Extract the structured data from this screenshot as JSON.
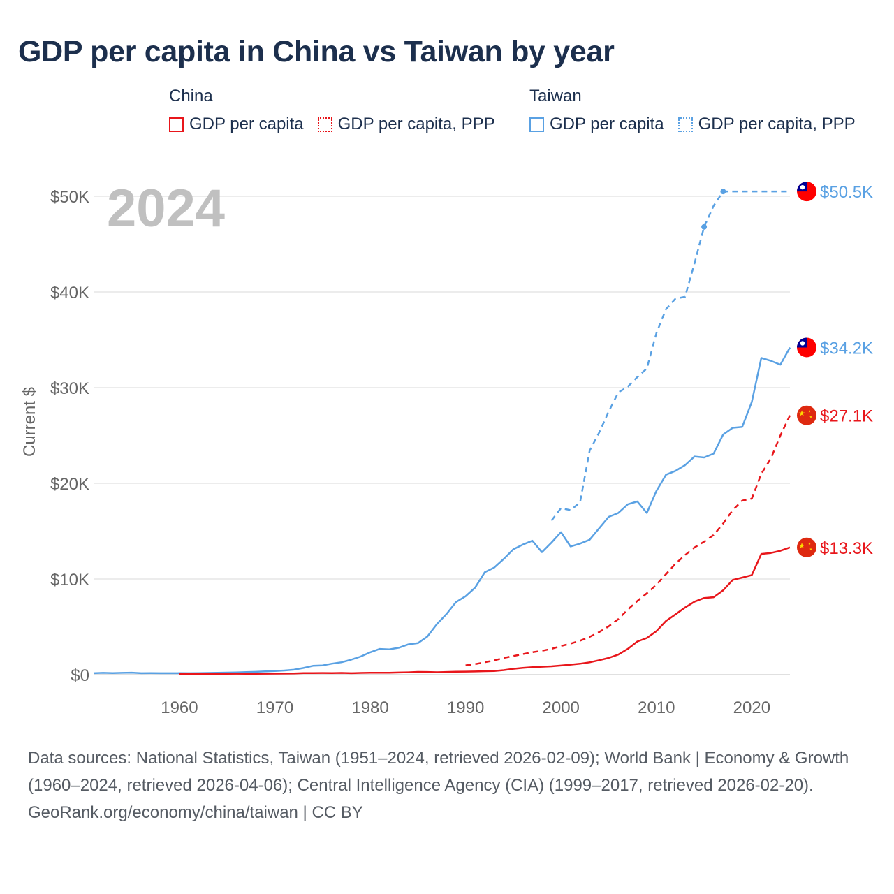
{
  "title": "GDP per capita in China vs Taiwan by year",
  "legend": {
    "china": {
      "title": "China",
      "items": [
        {
          "label": "GDP per capita",
          "color": "#e8161b",
          "style": "solid"
        },
        {
          "label": "GDP per capita, PPP",
          "color": "#e8161b",
          "style": "dotted"
        }
      ]
    },
    "taiwan": {
      "title": "Taiwan",
      "items": [
        {
          "label": "GDP per capita",
          "color": "#5aa1e3",
          "style": "solid"
        },
        {
          "label": "GDP per capita, PPP",
          "color": "#5aa1e3",
          "style": "dotted"
        }
      ]
    }
  },
  "year_overlay": "2024",
  "chart_data": {
    "type": "line",
    "title": "GDP per capita in China vs Taiwan by year",
    "xlabel": "",
    "ylabel": "Current $",
    "xlim": [
      1951,
      2024
    ],
    "ylim": [
      0,
      50500
    ],
    "x_ticks": [
      {
        "value": 1960,
        "label": "1960"
      },
      {
        "value": 1970,
        "label": "1970"
      },
      {
        "value": 1980,
        "label": "1980"
      },
      {
        "value": 1990,
        "label": "1990"
      },
      {
        "value": 2000,
        "label": "2000"
      },
      {
        "value": 2010,
        "label": "2010"
      },
      {
        "value": 2020,
        "label": "2020"
      }
    ],
    "y_ticks": [
      {
        "value": 0,
        "label": "$0"
      },
      {
        "value": 10000,
        "label": "$10K"
      },
      {
        "value": 20000,
        "label": "$20K"
      },
      {
        "value": 30000,
        "label": "$30K"
      },
      {
        "value": 40000,
        "label": "$40K"
      },
      {
        "value": 50000,
        "label": "$50K"
      }
    ],
    "grid": true,
    "series": [
      {
        "name": "Taiwan GDP per capita",
        "country": "taiwan",
        "color": "#5aa1e3",
        "dashed": false,
        "end_label": "$34.2K",
        "x": [
          1951,
          1952,
          1953,
          1954,
          1955,
          1956,
          1957,
          1958,
          1959,
          1960,
          1961,
          1962,
          1963,
          1964,
          1965,
          1966,
          1967,
          1968,
          1969,
          1970,
          1971,
          1972,
          1973,
          1974,
          1975,
          1976,
          1977,
          1978,
          1979,
          1980,
          1981,
          1982,
          1983,
          1984,
          1985,
          1986,
          1987,
          1988,
          1989,
          1990,
          1991,
          1992,
          1993,
          1994,
          1995,
          1996,
          1997,
          1998,
          1999,
          2000,
          2001,
          2002,
          2003,
          2004,
          2005,
          2006,
          2007,
          2008,
          2009,
          2010,
          2011,
          2012,
          2013,
          2014,
          2015,
          2016,
          2017,
          2018,
          2019,
          2020,
          2021,
          2022,
          2023,
          2024
        ],
        "y": [
          150,
          190,
          170,
          190,
          210,
          150,
          160,
          150,
          150,
          160,
          150,
          160,
          180,
          200,
          220,
          240,
          270,
          300,
          340,
          390,
          440,
          520,
          700,
          930,
          970,
          1150,
          1300,
          1570,
          1900,
          2340,
          2690,
          2650,
          2820,
          3170,
          3300,
          3990,
          5300,
          6340,
          7600,
          8200,
          9100,
          10700,
          11200,
          12100,
          13100,
          13600,
          14000,
          12800,
          13800,
          14900,
          13400,
          13700,
          14100,
          15300,
          16500,
          16900,
          17800,
          18100,
          16900,
          19200,
          20900,
          21300,
          21900,
          22800,
          22700,
          23100,
          25100,
          25800,
          25900,
          28500,
          33100,
          32800,
          32400,
          34200
        ]
      },
      {
        "name": "Taiwan GDP per capita, PPP",
        "country": "taiwan",
        "color": "#5aa1e3",
        "dashed": true,
        "end_label": "$50.5K",
        "x": [
          1999,
          2000,
          2001,
          2002,
          2003,
          2004,
          2005,
          2006,
          2007,
          2008,
          2009,
          2010,
          2011,
          2012,
          2013,
          2014,
          2015,
          2016,
          2017,
          2018,
          2019,
          2020,
          2021,
          2022,
          2023,
          2024
        ],
        "y": [
          16100,
          17400,
          17200,
          18000,
          23400,
          25300,
          27500,
          29500,
          30100,
          31100,
          32000,
          35700,
          38200,
          39300,
          39500,
          43000,
          46800,
          49000,
          50500,
          50500,
          50500,
          50500,
          50500,
          50500,
          50500,
          50500
        ],
        "markers_x": [
          2015,
          2017
        ]
      },
      {
        "name": "China GDP per capita",
        "country": "china",
        "color": "#e8161b",
        "dashed": false,
        "end_label": "$13.3K",
        "x": [
          1960,
          1961,
          1962,
          1963,
          1964,
          1965,
          1966,
          1967,
          1968,
          1969,
          1970,
          1971,
          1972,
          1973,
          1974,
          1975,
          1976,
          1977,
          1978,
          1979,
          1980,
          1981,
          1982,
          1983,
          1984,
          1985,
          1986,
          1987,
          1988,
          1989,
          1990,
          1991,
          1992,
          1993,
          1994,
          1995,
          1996,
          1997,
          1998,
          1999,
          2000,
          2001,
          2002,
          2003,
          2004,
          2005,
          2006,
          2007,
          2008,
          2009,
          2010,
          2011,
          2012,
          2013,
          2014,
          2015,
          2016,
          2017,
          2018,
          2019,
          2020,
          2021,
          2022,
          2023,
          2024
        ],
        "y": [
          90,
          76,
          70,
          74,
          85,
          98,
          104,
          96,
          91,
          99,
          113,
          119,
          132,
          157,
          160,
          178,
          165,
          185,
          156,
          183,
          195,
          197,
          203,
          225,
          250,
          294,
          282,
          252,
          283,
          310,
          318,
          333,
          366,
          377,
          473,
          610,
          709,
          782,
          829,
          873,
          959,
          1053,
          1149,
          1289,
          1509,
          1753,
          2099,
          2694,
          3468,
          3832,
          4550,
          5614,
          6301,
          7020,
          7636,
          8016,
          8094,
          8817,
          9905,
          10144,
          10409,
          12618,
          12720,
          12951,
          13300
        ]
      },
      {
        "name": "China GDP per capita, PPP",
        "country": "china",
        "color": "#e8161b",
        "dashed": true,
        "end_label": "$27.1K",
        "x": [
          1990,
          1991,
          1992,
          1993,
          1994,
          1995,
          1996,
          1997,
          1998,
          1999,
          2000,
          2001,
          2002,
          2003,
          2004,
          2005,
          2006,
          2007,
          2008,
          2009,
          2010,
          2011,
          2012,
          2013,
          2014,
          2015,
          2016,
          2017,
          2018,
          2019,
          2020,
          2021,
          2022,
          2023,
          2024
        ],
        "y": [
          980,
          1100,
          1300,
          1500,
          1750,
          1950,
          2150,
          2350,
          2500,
          2700,
          3000,
          3250,
          3550,
          3950,
          4450,
          5050,
          5800,
          6800,
          7700,
          8500,
          9400,
          10500,
          11600,
          12500,
          13300,
          13900,
          14600,
          15800,
          17200,
          18200,
          18400,
          21000,
          22600,
          25000,
          27100
        ]
      }
    ]
  },
  "footer": {
    "sources": "Data sources: National Statistics, Taiwan (1951–2024, retrieved 2026-02-09); World Bank | Economy & Growth (1960–2024, retrieved 2026-04-06); Central Intelligence Agency (CIA) (1999–2017, retrieved 2026-02-20).",
    "attribution": "GeoRank.org/economy/china/taiwan | CC BY"
  }
}
